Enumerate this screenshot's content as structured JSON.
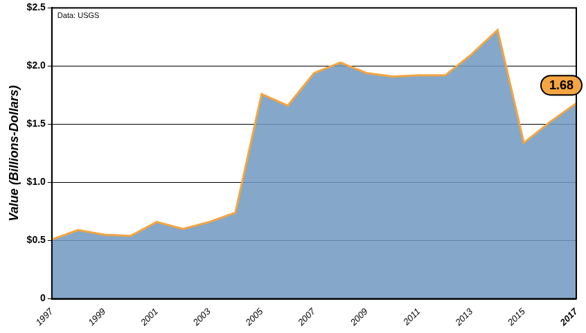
{
  "chart_data": {
    "type": "line",
    "annotation": "Data: USGS",
    "y_label": "Value (Billions-Dollars)",
    "x": [
      1997,
      1998,
      1999,
      2000,
      2001,
      2002,
      2003,
      2004,
      2005,
      2006,
      2007,
      2008,
      2009,
      2010,
      2011,
      2012,
      2013,
      2014,
      2015,
      2016,
      2017
    ],
    "values": [
      0.51,
      0.59,
      0.55,
      0.54,
      0.66,
      0.6,
      0.66,
      0.74,
      1.76,
      1.66,
      1.94,
      2.03,
      1.94,
      1.91,
      1.92,
      1.92,
      2.1,
      2.31,
      1.34,
      1.52,
      1.68
    ],
    "value_labels": [
      null,
      null,
      null,
      null,
      null,
      null,
      null,
      null,
      null,
      null,
      null,
      null,
      null,
      null,
      null,
      null,
      null,
      null,
      null,
      null,
      "1.68"
    ],
    "data_labels": true,
    "color": "#f3a541",
    "xlim": [
      1997,
      2017
    ],
    "xticks": [
      1997,
      1999,
      2001,
      2003,
      2005,
      2007,
      2009,
      2011,
      2013,
      2015,
      2017
    ],
    "ylim": [
      0,
      2.5
    ],
    "yticks": [
      0,
      {
        "value": 0.5,
        "label": "$0.5"
      },
      {
        "value": 1.0,
        "label": "$1.0"
      },
      {
        "value": 1.5,
        "label": "$1.5"
      },
      {
        "value": 2.0,
        "label": "$2.0"
      },
      {
        "value": 2.5,
        "label": "$2.5"
      }
    ],
    "grid": true
  }
}
